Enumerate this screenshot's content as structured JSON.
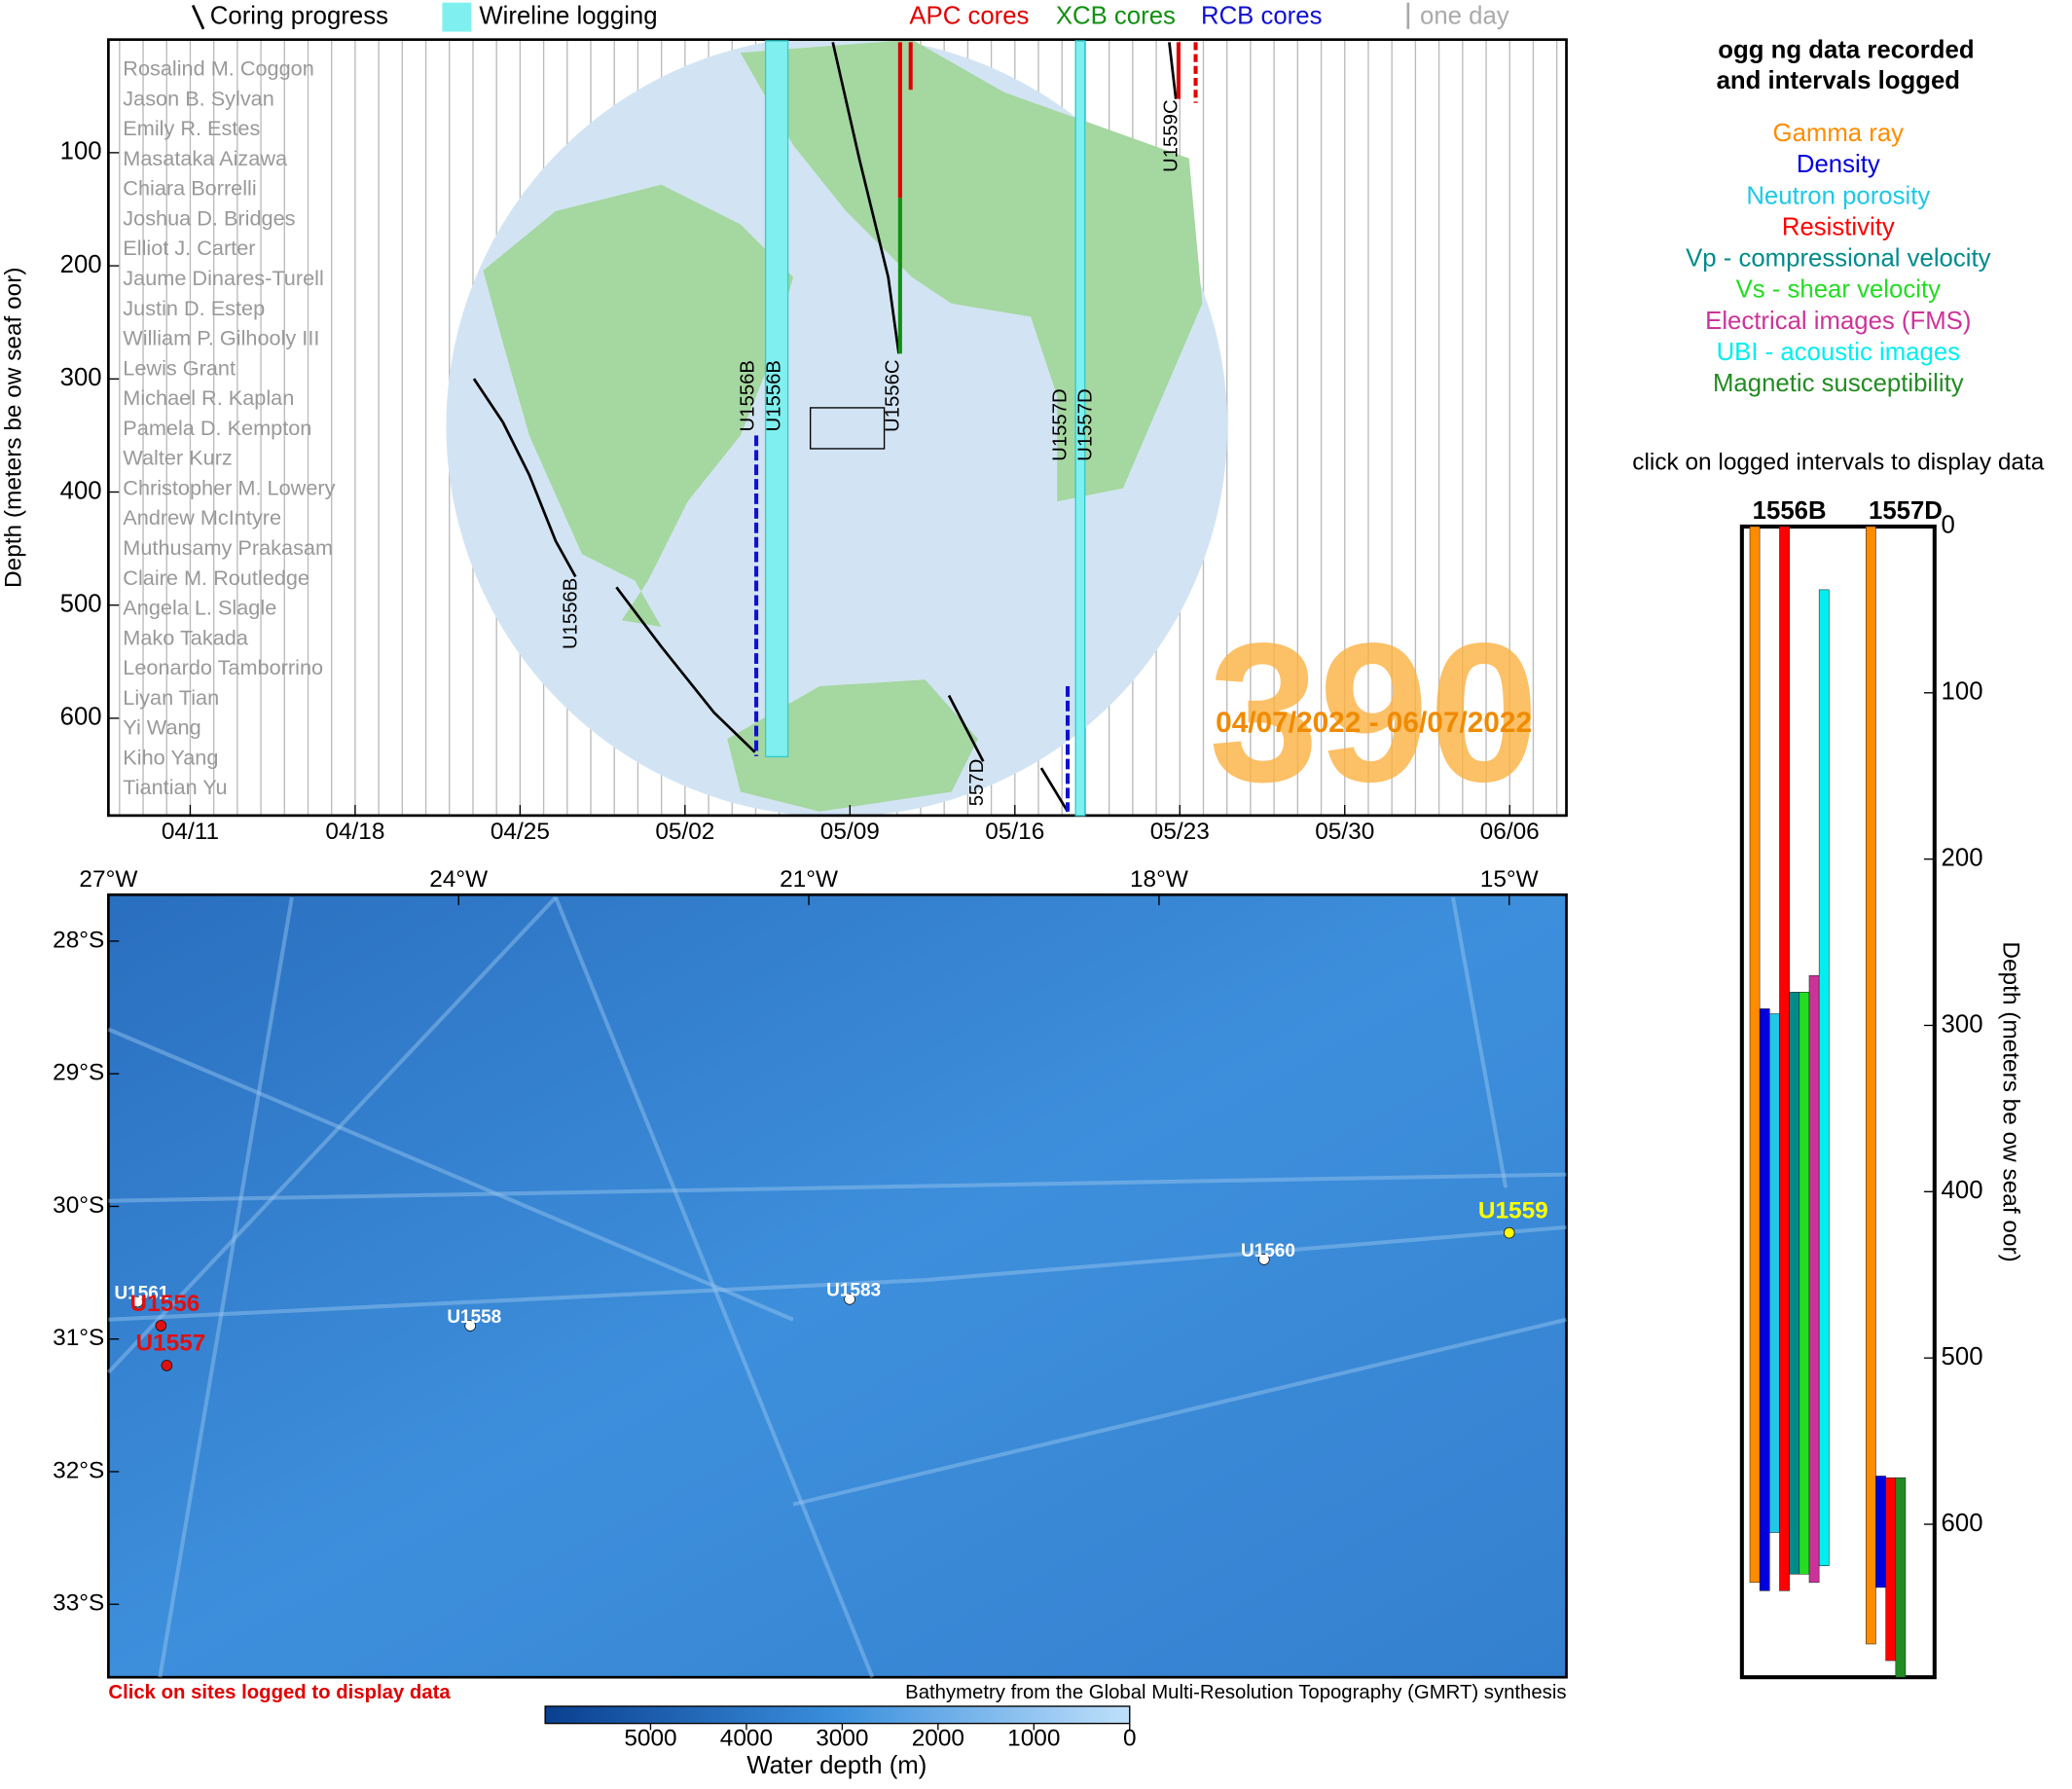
{
  "legend": {
    "coring": "Coring progress",
    "wireline": "Wireline logging",
    "apc": "APC cores",
    "xcb": "XCB cores",
    "rcb": "RCB cores",
    "day": "one day"
  },
  "timeline": {
    "y_label": "Depth (meters be ow seaf oor)",
    "ylim": [
      0,
      686
    ],
    "yticks": [
      100,
      200,
      300,
      400,
      500,
      600
    ],
    "xticks": [
      "04/11",
      "04/18",
      "04/25",
      "05/02",
      "05/09",
      "05/16",
      "05/23",
      "05/30",
      "06/06"
    ],
    "expedition": "390",
    "dates": "04/07/2022 - 06/07/2022",
    "scientists": [
      "Rosalind M. Coggon",
      "Jason B. Sylvan",
      "Emily R. Estes",
      "Masataka Aizawa",
      "Chiara Borrelli",
      "Joshua D. Bridges",
      "Elliot J. Carter",
      "Jaume Dinares-Turell",
      "Justin D. Estep",
      "William P. Gilhooly III",
      "Lewis Grant",
      "Michael R. Kaplan",
      "Pamela D. Kempton",
      "Walter Kurz",
      "Christopher M. Lowery",
      "Andrew McIntyre",
      "Muthusamy Prakasam",
      "Claire M. Routledge",
      "Angela L. Slagle",
      "Mako Takada",
      "Leonardo Tamborrino",
      "Liyan Tian",
      "Yi Wang",
      "Kiho Yang",
      "Tiantian Yu"
    ],
    "holes": [
      "U1556B",
      "U1556B",
      "U1556B",
      "U1556C",
      "U1557D",
      "U1557D",
      "557D",
      "U1559C"
    ],
    "wireline": [
      634,
      686
    ]
  },
  "map": {
    "xlim": [
      -27,
      -14.51
    ],
    "ylim": [
      -27.65,
      -33.55
    ],
    "xticks": [
      {
        "value": -27,
        "label": "27°W"
      },
      {
        "value": -24,
        "label": "24°W"
      },
      {
        "value": -21,
        "label": "21°W"
      },
      {
        "value": -18,
        "label": "18°W"
      },
      {
        "value": -15,
        "label": "15°W"
      }
    ],
    "yticks": [
      {
        "value": -28,
        "label": "28°S"
      },
      {
        "value": -29,
        "label": "29°S"
      },
      {
        "value": -30,
        "label": "30°S"
      },
      {
        "value": -31,
        "label": "31°S"
      },
      {
        "value": -32,
        "label": "32°S"
      },
      {
        "value": -33,
        "label": "33°S"
      }
    ],
    "sites": [
      {
        "name": "U1561",
        "lon": -26.75,
        "lat": -30.72,
        "color": "#ffffff"
      },
      {
        "name": "U1556",
        "lon": -26.55,
        "lat": -30.8,
        "color": "#e01010"
      },
      {
        "name": "U1557",
        "lon": -26.5,
        "lat": -31.1,
        "color": "#e01010"
      },
      {
        "name": "U1558",
        "lon": -23.9,
        "lat": -30.9,
        "color": "#ffffff"
      },
      {
        "name": "U1583",
        "lon": -20.65,
        "lat": -30.7,
        "color": "#ffffff"
      },
      {
        "name": "U1560",
        "lon": -17.1,
        "lat": -30.4,
        "color": "#ffffff"
      },
      {
        "name": "U1559",
        "lon": -15,
        "lat": -30.1,
        "color": "#ffff00"
      }
    ],
    "note": "Click on sites logged to display data",
    "credit": "Bathymetry from the Global Multi-Resolution Topography (GMRT) synthesis",
    "colorbar": {
      "label": "Water depth (m)",
      "lim": [
        6100,
        0
      ],
      "ticks": [
        5000,
        4000,
        3000,
        2000,
        1000,
        0
      ]
    }
  },
  "logs": {
    "title": [
      "ogg ng data recorded",
      "and intervals logged"
    ],
    "types": [
      {
        "name": "Gamma ray",
        "color": "#ff8c00"
      },
      {
        "name": "Density",
        "color": "#0000dd"
      },
      {
        "name": "Neutron porosity",
        "color": "#1ec8e6"
      },
      {
        "name": "Resistivity",
        "color": "#ff0000"
      },
      {
        "name": "Vp - compressional velocity",
        "color": "#008b8b"
      },
      {
        "name": "Vs - shear velocity",
        "color": "#22dd22"
      },
      {
        "name": "Electrical images (FMS)",
        "color": "#cc3399"
      },
      {
        "name": "UBI - acoustic images",
        "color": "#00eeee"
      },
      {
        "name": "Magnetic susceptibility",
        "color": "#228b22"
      }
    ],
    "hint": "click on logged intervals to display data",
    "ylim": [
      0,
      692
    ],
    "yticks": [
      0,
      100,
      200,
      300,
      400,
      500,
      600
    ],
    "y_label": "Depth (meters be ow seaf oor)",
    "holes": [
      {
        "name": "1556B",
        "intervals": [
          {
            "color": "#ff8c00",
            "top": 0,
            "bottom": 635
          },
          {
            "color": "#0000dd",
            "top": 290,
            "bottom": 640
          },
          {
            "color": "#1ec8e6",
            "top": 293,
            "bottom": 605
          },
          {
            "color": "#ff0000",
            "top": 0,
            "bottom": 640
          },
          {
            "color": "#008b8b",
            "top": 280,
            "bottom": 630
          },
          {
            "color": "#22dd22",
            "top": 280,
            "bottom": 630
          },
          {
            "color": "#cc3399",
            "top": 270,
            "bottom": 635
          },
          {
            "color": "#00eeee",
            "top": 38,
            "bottom": 625
          }
        ]
      },
      {
        "name": "1557D",
        "intervals": [
          {
            "color": "#ff8c00",
            "top": 0,
            "bottom": 672
          },
          {
            "color": "#0000dd",
            "top": 571,
            "bottom": 638
          },
          {
            "color": "#ff0000",
            "top": 572,
            "bottom": 682
          },
          {
            "color": "#228b22",
            "top": 572,
            "bottom": 692
          }
        ]
      }
    ]
  }
}
